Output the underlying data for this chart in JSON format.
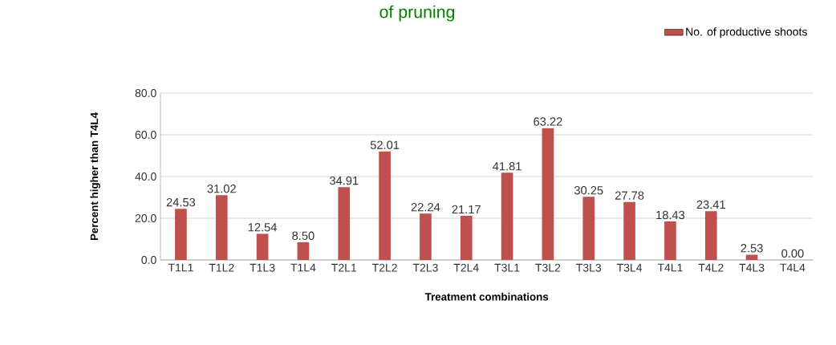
{
  "chart_data": {
    "type": "bar",
    "title": "of pruning",
    "xlabel": "Treatment combinations",
    "ylabel": "Percent higher than T4L4",
    "categories": [
      "T1L1",
      "T1L2",
      "T1L3",
      "T1L4",
      "T2L1",
      "T2L2",
      "T2L3",
      "T2L4",
      "T3L1",
      "T3L2",
      "T3L3",
      "T3L4",
      "T4L1",
      "T4L2",
      "T4L3",
      "T4L4"
    ],
    "series": [
      {
        "name": "No. of productive shoots",
        "color": "#c0504d",
        "values": [
          24.53,
          31.02,
          12.54,
          8.5,
          34.91,
          52.01,
          22.24,
          21.17,
          41.81,
          63.22,
          30.25,
          27.78,
          18.43,
          23.41,
          2.53,
          0.0
        ],
        "value_labels": [
          "24.53",
          "31.02",
          "12.54",
          "8.50",
          "34.91",
          "52.01",
          "22.24",
          "21.17",
          "41.81",
          "63.22",
          "30.25",
          "27.78",
          "18.43",
          "23.41",
          "2.53",
          "0.00"
        ]
      }
    ],
    "ylim": [
      0,
      80
    ],
    "yticks": [
      {
        "value": 0,
        "label": "0.0"
      },
      {
        "value": 20,
        "label": "20.0"
      },
      {
        "value": 40,
        "label": "40.0"
      },
      {
        "value": 60,
        "label": "60.0"
      },
      {
        "value": 80,
        "label": "80.0"
      }
    ],
    "grid": "y",
    "legend": "top right"
  }
}
